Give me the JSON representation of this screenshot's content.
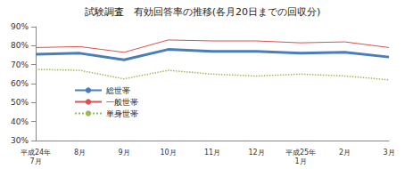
{
  "chart_data": {
    "type": "line",
    "title": "試験調査　有効回答率の推移(各月20日までの回収分)",
    "categories": [
      "平成24年\n7月",
      "8月",
      "9月",
      "10月",
      "11月",
      "12月",
      "平成25年\n1月",
      "2月",
      "3月"
    ],
    "series": [
      {
        "name": "総世帯",
        "color": "#4a7ebb",
        "line_style": "solid",
        "values": [
          75.5,
          76,
          72.5,
          78,
          77,
          77,
          76,
          76.5,
          74
        ]
      },
      {
        "name": "一般世帯",
        "color": "#d9534f",
        "line_style": "solid",
        "values": [
          79,
          79.5,
          76.5,
          83,
          82.5,
          82.5,
          81.5,
          82,
          79
        ]
      },
      {
        "name": "単身世帯",
        "color": "#9bbb59",
        "line_style": "dotted",
        "values": [
          67.5,
          67,
          62.5,
          67,
          65,
          64,
          65,
          64,
          62
        ]
      }
    ],
    "ylim": [
      30,
      90
    ],
    "yticks": [
      {
        "value": 30,
        "label": "30%"
      },
      {
        "value": 40,
        "label": "40%"
      },
      {
        "value": 50,
        "label": "50%"
      },
      {
        "value": 60,
        "label": "60%"
      },
      {
        "value": 70,
        "label": "70%"
      },
      {
        "value": 80,
        "label": "80%"
      },
      {
        "value": 90,
        "label": "90%"
      }
    ],
    "grid": false,
    "legend": "left"
  }
}
